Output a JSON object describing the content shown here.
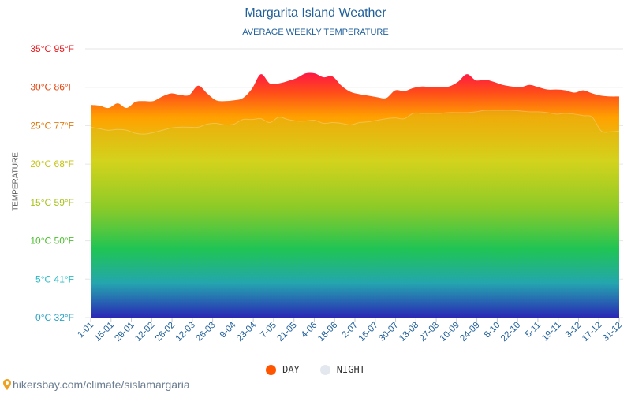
{
  "title": "Margarita Island Weather",
  "subtitle": "AVERAGE WEEKLY TEMPERATURE",
  "footer": {
    "url": "hikersbay.com/climate/sislamargaria",
    "icon": "map-pin-icon"
  },
  "legend": [
    {
      "label": "DAY",
      "color": "#ff5500"
    },
    {
      "label": "NIGHT",
      "color": "#e3e8ef"
    }
  ],
  "chart_data": {
    "type": "area",
    "title": "Margarita Island Weather",
    "subtitle": "AVERAGE WEEKLY TEMPERATURE",
    "ylabel": "TEMPERATURE",
    "ylim": [
      0,
      35
    ],
    "grid": true,
    "legend_position": "bottom",
    "y_ticks": [
      {
        "value": 0,
        "label": "0°C 32°F",
        "color": "#2aa3c4"
      },
      {
        "value": 5,
        "label": "5°C 41°F",
        "color": "#22bcc8"
      },
      {
        "value": 10,
        "label": "10°C 50°F",
        "color": "#4cbf2e"
      },
      {
        "value": 15,
        "label": "15°C 59°F",
        "color": "#a8c21d"
      },
      {
        "value": 20,
        "label": "20°C 68°F",
        "color": "#c6c317"
      },
      {
        "value": 25,
        "label": "25°C 77°F",
        "color": "#e27a10"
      },
      {
        "value": 30,
        "label": "30°C 86°F",
        "color": "#e8420c"
      },
      {
        "value": 35,
        "label": "35°C 95°F",
        "color": "#e81d22"
      }
    ],
    "x_labels": [
      "1-01",
      "15-01",
      "29-01",
      "12-02",
      "26-02",
      "12-03",
      "26-03",
      "9-04",
      "23-04",
      "7-05",
      "21-05",
      "4-06",
      "18-06",
      "2-07",
      "16-07",
      "30-07",
      "13-08",
      "27-08",
      "10-09",
      "24-09",
      "8-10",
      "22-10",
      "5-11",
      "19-11",
      "3-12",
      "17-12",
      "31-12"
    ],
    "series": [
      {
        "name": "DAY",
        "values": [
          27.7,
          27.6,
          27.3,
          27.9,
          27.3,
          28.1,
          28.2,
          28.2,
          28.8,
          29.2,
          29.0,
          29.0,
          30.2,
          29.2,
          28.3,
          28.2,
          28.3,
          28.6,
          29.8,
          31.7,
          30.5,
          30.5,
          30.8,
          31.2,
          31.8,
          31.8,
          31.3,
          31.4,
          30.2,
          29.4,
          29.1,
          28.9,
          28.7,
          28.6,
          29.6,
          29.5,
          29.9,
          30.1,
          30.0,
          30.0,
          30.1,
          30.7,
          31.7,
          30.9,
          31.0,
          30.7,
          30.3,
          30.1,
          30.0,
          30.3,
          30.0,
          29.7,
          29.7,
          29.6,
          29.3,
          29.6,
          29.2,
          28.9,
          28.8,
          28.8
        ]
      },
      {
        "name": "NIGHT",
        "values": [
          24.8,
          24.6,
          24.4,
          24.5,
          24.4,
          24.0,
          23.9,
          24.1,
          24.4,
          24.7,
          24.8,
          24.8,
          24.8,
          25.2,
          25.3,
          25.1,
          25.2,
          25.8,
          25.8,
          25.9,
          25.4,
          26.1,
          25.8,
          25.6,
          25.6,
          25.7,
          25.3,
          25.4,
          25.3,
          25.1,
          25.4,
          25.5,
          25.7,
          25.9,
          26.0,
          25.9,
          26.6,
          26.6,
          26.6,
          26.6,
          26.7,
          26.7,
          26.7,
          26.8,
          27.0,
          27.0,
          27.0,
          27.0,
          26.9,
          26.8,
          26.8,
          26.7,
          26.5,
          26.6,
          26.5,
          26.3,
          26.1,
          24.3,
          24.2,
          24.3
        ]
      }
    ]
  }
}
